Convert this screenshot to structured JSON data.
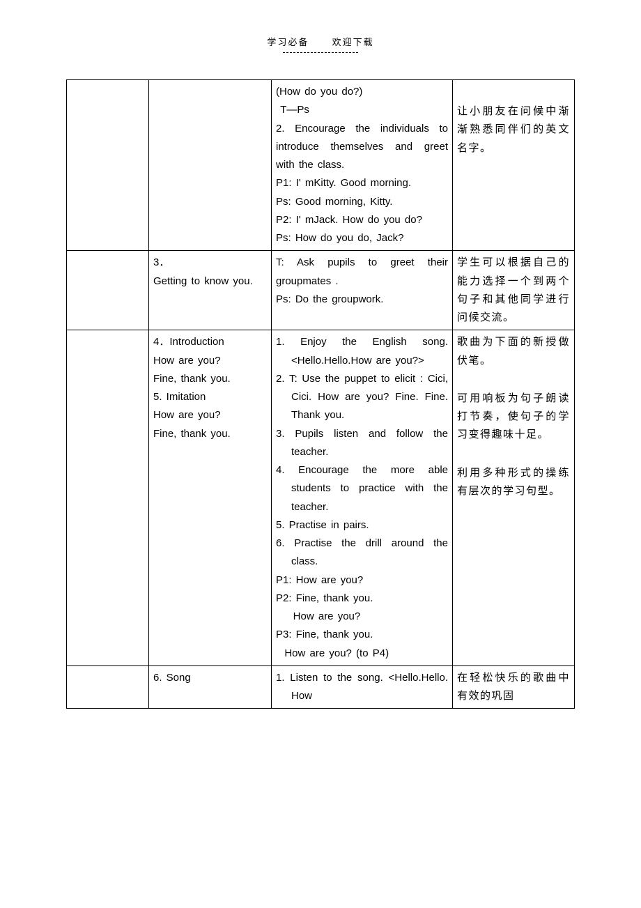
{
  "header": {
    "left": "学习必备",
    "right": "欢迎下载"
  },
  "rows": [
    {
      "col1": "",
      "col2": "",
      "col3": "(How do you do?)\n T—Ps\n2. Encourage the individuals to introduce themselves and greet with the class.\nP1: I' mKitty. Good morning.\nPs: Good morning, Kitty.\nP2: I' mJack. How do you do?\nPs: How do you do, Jack?",
      "col4_parts": [
        {
          "text": "",
          "gap": true
        },
        {
          "text": "让小朋友在问候中渐渐熟悉同伴们的英文名字。"
        }
      ]
    },
    {
      "col1": "",
      "col2": "3．\nGetting to know you.",
      "col3": "T: Ask pupils to greet their groupmates .\nPs: Do the groupwork.",
      "col4": "学生可以根据自己的能力选择一个到两个句子和其他同学进行问候交流。"
    },
    {
      "col1": "",
      "col2": "4．Introduction\nHow are you?\nFine, thank you.\n5. Imitation\nHow are you?\nFine, thank you.",
      "col3_list": [
        "1. Enjoy the English song.<Hello.Hello.How are you?>",
        "2. T: Use the puppet to elicit : Cici, Cici. How are you? Fine. Fine. Thank you.",
        "3. Pupils listen and follow the teacher.",
        "4. Encourage the more able students to practice with the teacher.",
        "5. Practise in pairs.",
        "6. Practise the drill around the class."
      ],
      "col3_tail": "P1: How are you?\nP2: Fine, thank you.\n    How are you?\nP3: Fine, thank you.\n  How are you? (to P4)",
      "col4_parts": [
        {
          "text": "歌曲为下面的新授做伏笔。"
        },
        {
          "text": "",
          "gap": true
        },
        {
          "text": "可用响板为句子朗读打节奏，使句子的学习变得趣味十足。"
        },
        {
          "text": "",
          "gap": true
        },
        {
          "text": "",
          "gap": true
        },
        {
          "text": "利用多种形式的操练有层次的学习句型。"
        }
      ]
    },
    {
      "col1": "",
      "col2": "6. Song",
      "col3_list": [
        "1. Listen to the song. <Hello.Hello. How"
      ],
      "col4": "在轻松快乐的歌曲中有效的巩固"
    }
  ]
}
